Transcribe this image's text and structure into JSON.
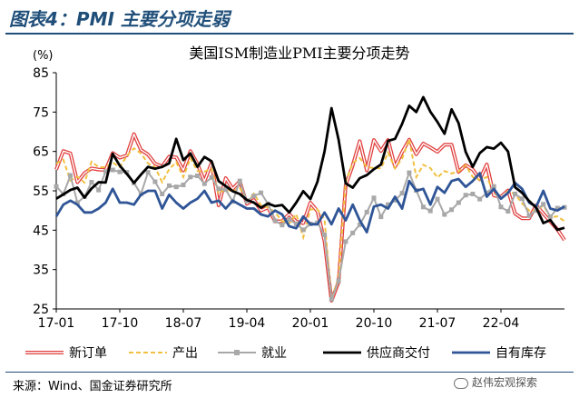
{
  "figure": {
    "label": "图表4：PMI 主要分项走弱",
    "source": "来源：Wind、国金证券研究所",
    "watermark": "赵伟宏观探索"
  },
  "chart_data": {
    "type": "line",
    "title": "美国ISM制造业PMI主要分项走势",
    "ylabel": "(%)",
    "xlabel": "",
    "ylim": [
      25,
      85
    ],
    "yticks": [
      25,
      35,
      45,
      55,
      65,
      75,
      85
    ],
    "xticks": [
      "17-01",
      "17-10",
      "18-07",
      "19-04",
      "20-01",
      "20-10",
      "21-07",
      "22-04"
    ],
    "grid": false,
    "legend_position": "bottom",
    "x_start": "2017-01",
    "x_end": "2023-01",
    "series": [
      {
        "name": "新订单",
        "color": "#e0403f",
        "style": "double",
        "values": [
          60.4,
          65.1,
          64.5,
          57.2,
          59.5,
          60.7,
          60.4,
          60.3,
          64.6,
          63.4,
          64.0,
          69.4,
          65.4,
          64.2,
          61.9,
          61.2,
          63.7,
          63.5,
          60.2,
          65.1,
          61.8,
          57.4,
          62.1,
          51.3,
          58.2,
          55.5,
          57.4,
          51.7,
          52.7,
          50.0,
          50.8,
          47.2,
          47.3,
          49.1,
          47.2,
          46.8,
          52.0,
          49.8,
          42.2,
          27.1,
          31.8,
          56.4,
          61.5,
          67.6,
          60.2,
          67.9,
          65.1,
          67.9,
          61.1,
          64.8,
          68.0,
          64.3,
          67.0,
          66.0,
          64.9,
          66.7,
          66.7,
          59.8,
          61.5,
          60.4,
          57.9,
          61.7,
          53.8,
          53.5,
          55.1,
          49.2,
          48.0,
          48.0,
          51.3,
          49.2,
          47.2,
          45.2,
          42.5
        ]
      },
      {
        "name": "产出",
        "color": "#f0c040",
        "style": "dashed",
        "values": [
          61.9,
          62.9,
          57.6,
          58.6,
          57.1,
          62.4,
          61.0,
          61.0,
          62.2,
          61.0,
          63.9,
          65.8,
          64.5,
          62.0,
          61.0,
          57.2,
          60.5,
          62.3,
          58.5,
          63.3,
          60.0,
          59.9,
          60.6,
          54.3,
          55.5,
          54.8,
          55.8,
          52.3,
          54.3,
          51.3,
          50.8,
          49.5,
          47.3,
          46.7,
          49.1,
          43.2,
          50.3,
          50.3,
          47.7,
          27.5,
          33.2,
          57.3,
          62.1,
          63.3,
          61.0,
          60.8,
          60.7,
          64.7,
          60.7,
          63.2,
          68.1,
          58.5,
          61.6,
          60.8,
          58.4,
          60.0,
          59.4,
          59.9,
          61.5,
          58.5,
          57.8,
          58.5,
          54.5,
          53.1,
          54.9,
          54.2,
          51.8,
          50.0,
          50.0,
          51.3,
          48.3,
          48.5,
          47.3
        ]
      },
      {
        "name": "就业",
        "color": "#a8a8a8",
        "style": "square",
        "values": [
          56.1,
          54.2,
          58.9,
          52.0,
          53.5,
          57.2,
          55.2,
          59.9,
          60.3,
          59.8,
          59.7,
          57.0,
          54.2,
          59.7,
          57.3,
          54.2,
          56.3,
          56.0,
          56.5,
          58.5,
          58.8,
          56.8,
          58.4,
          55.5,
          55.3,
          52.3,
          57.5,
          52.4,
          53.7,
          54.5,
          51.7,
          47.4,
          46.3,
          47.7,
          46.6,
          45.1,
          46.6,
          46.9,
          43.8,
          27.5,
          32.1,
          42.1,
          44.3,
          46.4,
          49.6,
          53.2,
          48.4,
          51.5,
          52.6,
          54.4,
          59.6,
          55.1,
          50.9,
          49.9,
          52.9,
          49.0,
          50.2,
          52.0,
          53.9,
          54.2,
          52.9,
          54.5,
          56.1,
          50.9,
          49.8,
          54.2,
          53.0,
          48.7,
          50.0,
          51.6,
          48.4,
          50.6,
          50.8
        ]
      },
      {
        "name": "供应商交付",
        "color": "#000000",
        "style": "solid",
        "values": [
          53.0,
          54.1,
          55.2,
          55.8,
          53.3,
          55.6,
          57.2,
          57.1,
          64.4,
          61.4,
          59.3,
          57.0,
          59.1,
          61.1,
          60.6,
          61.1,
          62.0,
          68.2,
          62.8,
          64.5,
          61.1,
          63.6,
          62.5,
          57.5,
          56.2,
          54.9,
          54.2,
          52.7,
          52.0,
          50.7,
          51.8,
          51.1,
          51.4,
          49.5,
          52.0,
          54.9,
          52.9,
          57.3,
          65.0,
          76.0,
          68.0,
          56.9,
          55.8,
          58.2,
          59.0,
          60.5,
          61.7,
          67.7,
          68.2,
          72.0,
          76.6,
          75.0,
          78.8,
          75.1,
          72.5,
          69.5,
          75.7,
          72.2,
          64.9,
          61.1,
          64.6,
          66.1,
          65.7,
          67.2,
          65.0,
          55.9,
          54.5,
          52.4,
          50.7,
          46.8,
          47.6,
          45.1,
          45.6
        ]
      },
      {
        "name": "自有库存",
        "color": "#2f5597",
        "style": "solid",
        "values": [
          48.5,
          51.5,
          52.5,
          51.5,
          49.5,
          49.5,
          50.5,
          52.0,
          55.5,
          52.0,
          52.0,
          51.5,
          54.0,
          55.0,
          55.0,
          50.5,
          54.0,
          52.0,
          50.5,
          52.0,
          53.0,
          55.0,
          52.0,
          52.5,
          50.5,
          52.5,
          51.5,
          50.5,
          50.5,
          49.0,
          48.5,
          50.0,
          49.0,
          46.0,
          45.5,
          48.5,
          46.5,
          46.5,
          49.5,
          46.5,
          50.5,
          47.5,
          51.5,
          47.5,
          44.5,
          51.0,
          51.5,
          50.5,
          53.5,
          50.5,
          57.5,
          55.0,
          55.5,
          51.5,
          56.0,
          54.5,
          57.5,
          58.0,
          56.0,
          57.5,
          59.5,
          53.5,
          55.5,
          53.0,
          54.5,
          57.0,
          55.5,
          52.0,
          51.0,
          55.0,
          50.5,
          50.0,
          51.0
        ]
      }
    ]
  }
}
